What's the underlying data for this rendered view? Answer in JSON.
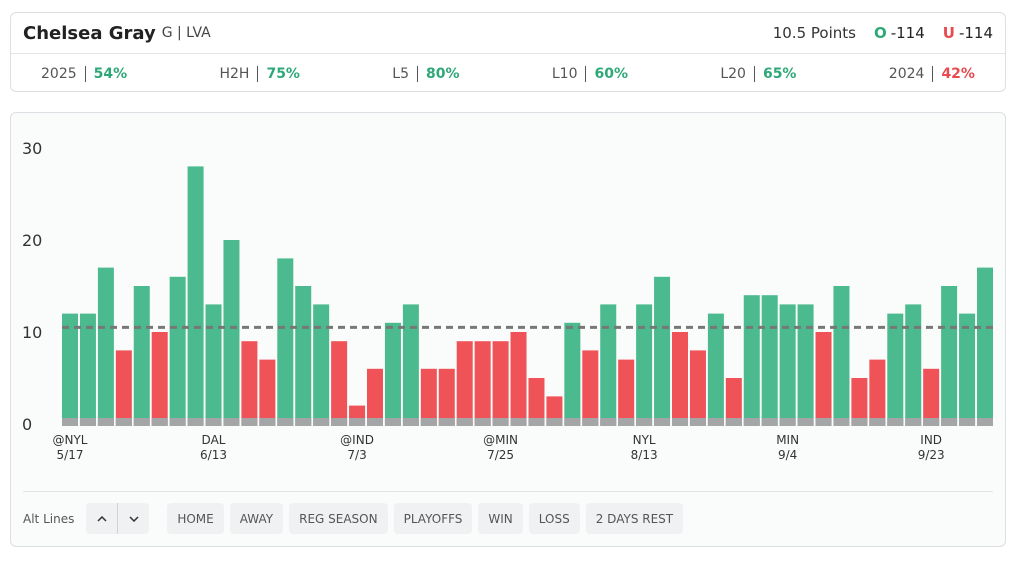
{
  "header": {
    "player": "Chelsea Gray",
    "position": "G | LVA",
    "line": "10.5 Points",
    "over": {
      "mark": "O",
      "odds": "-114",
      "color": "#2fa878"
    },
    "under": {
      "mark": "U",
      "odds": "-114",
      "color": "#e84a4f"
    }
  },
  "stats": [
    {
      "label": "2025",
      "value": "54%",
      "color": "#2fa878"
    },
    {
      "label": "H2H",
      "value": "75%",
      "color": "#2fa878"
    },
    {
      "label": "L5",
      "value": "80%",
      "color": "#2fa878"
    },
    {
      "label": "L10",
      "value": "60%",
      "color": "#2fa878"
    },
    {
      "label": "L20",
      "value": "65%",
      "color": "#2fa878"
    },
    {
      "label": "2024",
      "value": "42%",
      "color": "#e84a4f"
    }
  ],
  "chart_data": {
    "type": "bar",
    "categories": [
      "@NYL",
      null,
      null,
      null,
      null,
      null,
      null,
      null,
      "DAL",
      null,
      null,
      null,
      null,
      null,
      null,
      null,
      "@IND",
      null,
      null,
      null,
      null,
      null,
      null,
      null,
      "@MIN",
      null,
      null,
      null,
      null,
      null,
      null,
      null,
      "NYL",
      null,
      null,
      null,
      null,
      null,
      null,
      null,
      "MIN",
      null,
      null,
      null,
      null,
      null,
      null,
      null,
      "IND",
      null,
      null,
      null
    ],
    "dates": [
      "5/17",
      null,
      null,
      null,
      null,
      null,
      null,
      null,
      "6/13",
      null,
      null,
      null,
      null,
      null,
      null,
      null,
      "7/3",
      null,
      null,
      null,
      null,
      null,
      null,
      null,
      "7/25",
      null,
      null,
      null,
      null,
      null,
      null,
      null,
      "8/13",
      null,
      null,
      null,
      null,
      null,
      null,
      null,
      "9/4",
      null,
      null,
      null,
      null,
      null,
      null,
      null,
      "9/23",
      null,
      null,
      null
    ],
    "values": [
      12,
      12,
      17,
      8,
      15,
      10,
      16,
      28,
      13,
      20,
      9,
      7,
      18,
      15,
      13,
      9,
      2,
      6,
      11,
      13,
      6,
      6,
      9,
      9,
      9,
      10,
      5,
      3,
      11,
      8,
      13,
      7,
      13,
      16,
      10,
      8,
      12,
      5,
      14,
      14,
      13,
      13,
      10,
      15,
      5,
      7,
      12,
      13,
      6,
      15,
      12,
      17
    ],
    "threshold": 10.5,
    "over_color": "#4bba8e",
    "under_color": "#ef5358",
    "ylim": [
      0,
      30
    ],
    "yticks": [
      0,
      10,
      20,
      30
    ]
  },
  "filters": {
    "label": "Alt Lines",
    "buttons": [
      "HOME",
      "AWAY",
      "REG SEASON",
      "PLAYOFFS",
      "WIN",
      "LOSS",
      "2 DAYS REST"
    ]
  }
}
